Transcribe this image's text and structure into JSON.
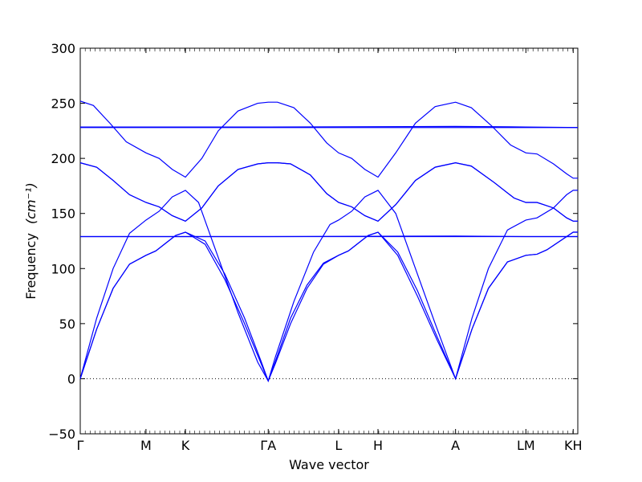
{
  "chart_data": {
    "type": "line",
    "xlabel": "Wave vector",
    "ylabel": "Frequency",
    "ylabel_unit": "(cm⁻¹)",
    "ylim": [
      -50,
      300
    ],
    "yticks": [
      -50,
      0,
      50,
      100,
      150,
      200,
      250,
      300
    ],
    "ytick_labels": [
      "−50",
      "0",
      "50",
      "100",
      "150",
      "200",
      "250",
      "300"
    ],
    "xlim": [
      0,
      7.57
    ],
    "high_symmetry_points": [
      {
        "label": "Γ",
        "x": 0.0
      },
      {
        "label": "M",
        "x": 1.0
      },
      {
        "label": "K",
        "x": 1.6
      },
      {
        "label": "ΓA",
        "x": 2.86
      },
      {
        "label": "L",
        "x": 3.93
      },
      {
        "label": "H",
        "x": 4.53
      },
      {
        "label": "A",
        "x": 5.71
      },
      {
        "label": "LM",
        "x": 6.78
      },
      {
        "label": "KH",
        "x": 7.5
      }
    ],
    "segments": [
      {
        "from": "Γ",
        "to": "M"
      },
      {
        "from": "M",
        "to": "K"
      },
      {
        "from": "K",
        "to": "Γ"
      },
      {
        "from": "A",
        "to": "L"
      },
      {
        "from": "L",
        "to": "H"
      },
      {
        "from": "H",
        "to": "A"
      },
      {
        "from": "A",
        "to": "L"
      },
      {
        "from": "M",
        "to": "K"
      },
      {
        "from": "K",
        "to": "H"
      }
    ],
    "reference_line": {
      "y": 0,
      "style": "dotted"
    },
    "series": [
      {
        "points": [
          [
            0,
            0
          ],
          [
            0.25,
            45
          ],
          [
            0.5,
            82
          ],
          [
            0.75,
            104
          ],
          [
            1.0,
            112
          ],
          [
            1.15,
            116
          ],
          [
            1.3,
            123
          ],
          [
            1.45,
            130
          ],
          [
            1.6,
            133
          ],
          [
            1.9,
            122
          ],
          [
            2.2,
            90
          ],
          [
            2.5,
            50
          ],
          [
            2.75,
            14
          ],
          [
            2.86,
            -2
          ],
          [
            2.97,
            14
          ],
          [
            3.2,
            50
          ],
          [
            3.45,
            82
          ],
          [
            3.7,
            104
          ],
          [
            3.93,
            112
          ],
          [
            4.08,
            116
          ],
          [
            4.23,
            123
          ],
          [
            4.38,
            130
          ],
          [
            4.53,
            133
          ],
          [
            4.83,
            112
          ],
          [
            5.13,
            75
          ],
          [
            5.43,
            35
          ],
          [
            5.71,
            0
          ],
          [
            5.96,
            45
          ],
          [
            6.21,
            82
          ],
          [
            6.5,
            106
          ],
          [
            6.78,
            112
          ],
          [
            6.95,
            113
          ],
          [
            7.1,
            117
          ],
          [
            7.3,
            125
          ],
          [
            7.45,
            131
          ],
          [
            7.5,
            133
          ],
          [
            7.57,
            133
          ]
        ]
      },
      {
        "points": [
          [
            0,
            0
          ],
          [
            0.25,
            45
          ],
          [
            0.5,
            82
          ],
          [
            0.75,
            104
          ],
          [
            1.0,
            112
          ],
          [
            1.15,
            116
          ],
          [
            1.3,
            123
          ],
          [
            1.45,
            130
          ],
          [
            1.6,
            133
          ],
          [
            1.9,
            125
          ],
          [
            2.2,
            95
          ],
          [
            2.5,
            55
          ],
          [
            2.75,
            16
          ],
          [
            2.86,
            -2
          ],
          [
            2.97,
            16
          ],
          [
            3.2,
            55
          ],
          [
            3.45,
            85
          ],
          [
            3.7,
            105
          ],
          [
            3.93,
            112
          ],
          [
            4.08,
            116
          ],
          [
            4.23,
            123
          ],
          [
            4.38,
            130
          ],
          [
            4.53,
            133
          ],
          [
            4.83,
            115
          ],
          [
            5.13,
            80
          ],
          [
            5.43,
            38
          ],
          [
            5.71,
            0
          ],
          [
            5.96,
            45
          ],
          [
            6.21,
            82
          ],
          [
            6.5,
            106
          ],
          [
            6.78,
            112
          ],
          [
            6.95,
            113
          ],
          [
            7.1,
            117
          ],
          [
            7.3,
            125
          ],
          [
            7.45,
            131
          ],
          [
            7.5,
            133
          ],
          [
            7.57,
            133
          ]
        ]
      },
      {
        "points": [
          [
            0,
            0
          ],
          [
            0.25,
            55
          ],
          [
            0.5,
            100
          ],
          [
            0.75,
            132
          ],
          [
            1.0,
            144
          ],
          [
            1.2,
            152
          ],
          [
            1.4,
            165
          ],
          [
            1.6,
            171
          ],
          [
            1.8,
            160
          ],
          [
            2.1,
            110
          ],
          [
            2.4,
            60
          ],
          [
            2.7,
            15
          ],
          [
            2.86,
            -2
          ],
          [
            2.97,
            20
          ],
          [
            3.25,
            70
          ],
          [
            3.55,
            115
          ],
          [
            3.8,
            140
          ],
          [
            3.93,
            144
          ],
          [
            4.13,
            152
          ],
          [
            4.33,
            165
          ],
          [
            4.53,
            171
          ],
          [
            4.8,
            150
          ],
          [
            5.1,
            100
          ],
          [
            5.4,
            50
          ],
          [
            5.71,
            0
          ],
          [
            5.96,
            55
          ],
          [
            6.21,
            100
          ],
          [
            6.5,
            135
          ],
          [
            6.78,
            144
          ],
          [
            6.95,
            146
          ],
          [
            7.2,
            155
          ],
          [
            7.4,
            167
          ],
          [
            7.5,
            171
          ],
          [
            7.57,
            171
          ]
        ]
      },
      {
        "points": [
          [
            0,
            129
          ],
          [
            1.0,
            129
          ],
          [
            2.86,
            129
          ],
          [
            5.71,
            129
          ],
          [
            6.78,
            129
          ],
          [
            7.57,
            129
          ]
        ]
      },
      {
        "points": [
          [
            0,
            129
          ],
          [
            1.0,
            129
          ],
          [
            2.86,
            129
          ],
          [
            5.71,
            129.5
          ],
          [
            6.78,
            129
          ],
          [
            7.57,
            129
          ]
        ]
      },
      {
        "points": [
          [
            0,
            196
          ],
          [
            0.25,
            192
          ],
          [
            0.5,
            180
          ],
          [
            0.75,
            167
          ],
          [
            1.0,
            160
          ],
          [
            1.2,
            156
          ],
          [
            1.4,
            148
          ],
          [
            1.6,
            143
          ],
          [
            1.85,
            155
          ],
          [
            2.1,
            175
          ],
          [
            2.4,
            190
          ],
          [
            2.7,
            195
          ],
          [
            2.86,
            196
          ],
          [
            3.0,
            196
          ],
          [
            3.2,
            195
          ],
          [
            3.5,
            185
          ],
          [
            3.75,
            168
          ],
          [
            3.93,
            160
          ],
          [
            4.13,
            156
          ],
          [
            4.33,
            148
          ],
          [
            4.53,
            143
          ],
          [
            4.8,
            158
          ],
          [
            5.1,
            180
          ],
          [
            5.4,
            192
          ],
          [
            5.71,
            196
          ],
          [
            5.95,
            193
          ],
          [
            6.3,
            178
          ],
          [
            6.6,
            164
          ],
          [
            6.78,
            160
          ],
          [
            6.95,
            160
          ],
          [
            7.2,
            155
          ],
          [
            7.4,
            146
          ],
          [
            7.5,
            143
          ],
          [
            7.57,
            143
          ]
        ]
      },
      {
        "points": [
          [
            0,
            196
          ],
          [
            0.25,
            192
          ],
          [
            0.5,
            180
          ],
          [
            0.75,
            167
          ],
          [
            1.0,
            160
          ],
          [
            1.2,
            156
          ],
          [
            1.4,
            148
          ],
          [
            1.6,
            143
          ],
          [
            1.85,
            155
          ],
          [
            2.1,
            175
          ],
          [
            2.4,
            190
          ],
          [
            2.7,
            195
          ],
          [
            2.86,
            196
          ],
          [
            3.0,
            196
          ],
          [
            3.2,
            195
          ],
          [
            3.5,
            185
          ],
          [
            3.75,
            168
          ],
          [
            3.93,
            160
          ],
          [
            4.13,
            156
          ],
          [
            4.33,
            148
          ],
          [
            4.53,
            143
          ],
          [
            4.8,
            158
          ],
          [
            5.1,
            180
          ],
          [
            5.4,
            192
          ],
          [
            5.71,
            196
          ],
          [
            5.95,
            193
          ],
          [
            6.3,
            178
          ],
          [
            6.6,
            164
          ],
          [
            6.78,
            160
          ],
          [
            6.95,
            160
          ],
          [
            7.2,
            155
          ],
          [
            7.4,
            146
          ],
          [
            7.5,
            143
          ],
          [
            7.57,
            143
          ]
        ]
      },
      {
        "points": [
          [
            0,
            228
          ],
          [
            2.86,
            228
          ],
          [
            5.71,
            228
          ],
          [
            7.57,
            228
          ]
        ]
      },
      {
        "points": [
          [
            0,
            228.5
          ],
          [
            2.86,
            228.5
          ],
          [
            5.71,
            229
          ],
          [
            6.78,
            228.5
          ],
          [
            7.57,
            228
          ]
        ]
      },
      {
        "points": [
          [
            0,
            252
          ],
          [
            0.2,
            248
          ],
          [
            0.45,
            232
          ],
          [
            0.7,
            215
          ],
          [
            1.0,
            205
          ],
          [
            1.2,
            200
          ],
          [
            1.4,
            190
          ],
          [
            1.6,
            183
          ],
          [
            1.85,
            200
          ],
          [
            2.1,
            225
          ],
          [
            2.4,
            243
          ],
          [
            2.7,
            250
          ],
          [
            2.86,
            251
          ],
          [
            3.0,
            251
          ],
          [
            3.25,
            246
          ],
          [
            3.5,
            232
          ],
          [
            3.75,
            214
          ],
          [
            3.93,
            205
          ],
          [
            4.13,
            200
          ],
          [
            4.33,
            190
          ],
          [
            4.53,
            183
          ],
          [
            4.8,
            205
          ],
          [
            5.1,
            232
          ],
          [
            5.4,
            247
          ],
          [
            5.71,
            251
          ],
          [
            5.95,
            246
          ],
          [
            6.25,
            230
          ],
          [
            6.55,
            212
          ],
          [
            6.78,
            205
          ],
          [
            6.95,
            204
          ],
          [
            7.2,
            195
          ],
          [
            7.4,
            186
          ],
          [
            7.5,
            182
          ],
          [
            7.57,
            182
          ]
        ]
      }
    ]
  }
}
